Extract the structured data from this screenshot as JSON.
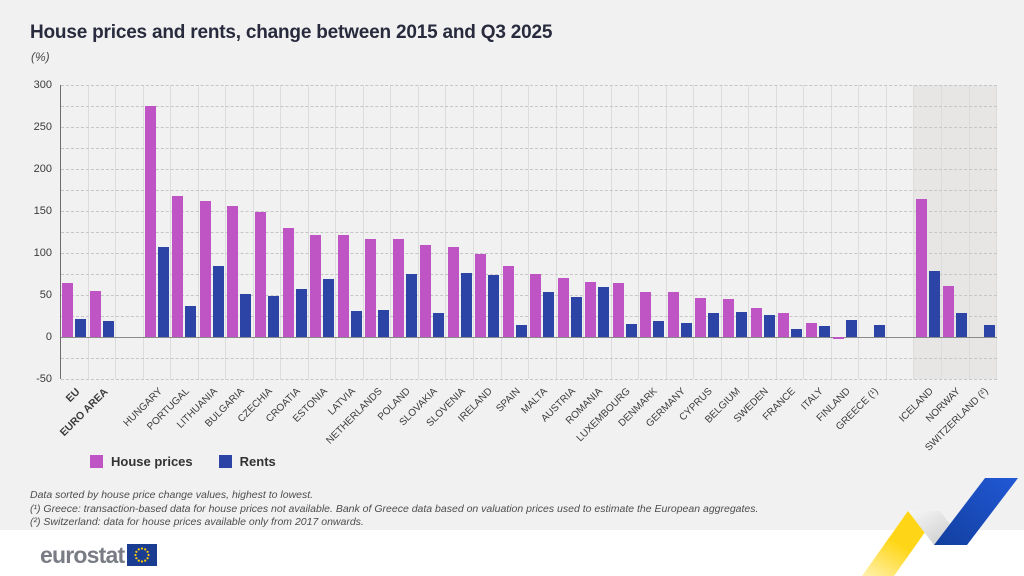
{
  "page": {
    "title": "House prices and rents, change between 2015 and Q3 2025",
    "unit_label": "(%)"
  },
  "chart_data": {
    "type": "bar",
    "title": "House prices and rents, change between 2015 and Q3 2025",
    "ylabel": "(%)",
    "ylim": [
      -50,
      300
    ],
    "ytick_step": 50,
    "yticks": [
      300,
      250,
      200,
      150,
      100,
      50,
      0,
      -50
    ],
    "grid": "dashed horizontal every 25, light vertical per category",
    "legend_position": "bottom-left",
    "categories": [
      {
        "label": "EU",
        "group": "aggregate"
      },
      {
        "label": "EURO AREA",
        "group": "aggregate"
      },
      {
        "label": "HUNGARY",
        "group": "eu"
      },
      {
        "label": "PORTUGAL",
        "group": "eu"
      },
      {
        "label": "LITHUANIA",
        "group": "eu"
      },
      {
        "label": "BULGARIA",
        "group": "eu"
      },
      {
        "label": "CZECHIA",
        "group": "eu"
      },
      {
        "label": "CROATIA",
        "group": "eu"
      },
      {
        "label": "ESTONIA",
        "group": "eu"
      },
      {
        "label": "LATVIA",
        "group": "eu"
      },
      {
        "label": "NETHERLANDS",
        "group": "eu"
      },
      {
        "label": "POLAND",
        "group": "eu"
      },
      {
        "label": "SLOVAKIA",
        "group": "eu"
      },
      {
        "label": "SLOVENIA",
        "group": "eu"
      },
      {
        "label": "IRELAND",
        "group": "eu"
      },
      {
        "label": "SPAIN",
        "group": "eu"
      },
      {
        "label": "MALTA",
        "group": "eu"
      },
      {
        "label": "AUSTRIA",
        "group": "eu"
      },
      {
        "label": "ROMANIA",
        "group": "eu"
      },
      {
        "label": "LUXEMBOURG",
        "group": "eu"
      },
      {
        "label": "DENMARK",
        "group": "eu"
      },
      {
        "label": "GERMANY",
        "group": "eu"
      },
      {
        "label": "CYPRUS",
        "group": "eu"
      },
      {
        "label": "BELGIUM",
        "group": "eu"
      },
      {
        "label": "SWEDEN",
        "group": "eu"
      },
      {
        "label": "FRANCE",
        "group": "eu"
      },
      {
        "label": "ITALY",
        "group": "eu"
      },
      {
        "label": "FINLAND",
        "group": "eu"
      },
      {
        "label": "GREECE (¹)",
        "group": "eu"
      },
      {
        "label": "ICELAND",
        "group": "efta"
      },
      {
        "label": "NORWAY",
        "group": "efta"
      },
      {
        "label": "SWITZERLAND (²)",
        "group": "efta"
      }
    ],
    "series": [
      {
        "name": "House prices",
        "color": "#bf54c4",
        "values": [
          64,
          55,
          275,
          168,
          162,
          156,
          149,
          130,
          122,
          121,
          117,
          117,
          109,
          107,
          99,
          84,
          75,
          70,
          65,
          64,
          54,
          53,
          46,
          45,
          34,
          29,
          17,
          -2,
          null,
          164,
          61,
          null
        ]
      },
      {
        "name": "Rents",
        "color": "#2b44a5",
        "values": [
          21,
          19,
          107,
          37,
          85,
          51,
          49,
          57,
          69,
          31,
          32,
          75,
          28,
          76,
          74,
          14,
          53,
          48,
          59,
          16,
          19,
          17,
          29,
          30,
          26,
          10,
          13,
          20,
          14,
          78,
          28,
          14
        ]
      }
    ],
    "legend": [
      {
        "name": "House prices",
        "color": "#bf54c4"
      },
      {
        "name": "Rents",
        "color": "#2b44a5"
      }
    ]
  },
  "footnotes": [
    "Data sorted by house price change values, highest to lowest.",
    "(¹) Greece: transaction-based data for house prices not available. Bank of Greece data based on valuation prices used to estimate the European aggregates.",
    "(²) Switzerland: data for house prices available only from 2017 onwards."
  ],
  "footer": {
    "logo_text": "eurostat"
  },
  "colors": {
    "page_background": "#f2f1f1",
    "efta_band": "#e7e6e5",
    "house_prices": "#bf54c4",
    "rents": "#2b44a5",
    "zigzag_yellow": "#ffd617",
    "zigzag_blue": "#1b54c8",
    "flag_blue": "#1b3d91",
    "flag_stars": "#ffcc00"
  }
}
